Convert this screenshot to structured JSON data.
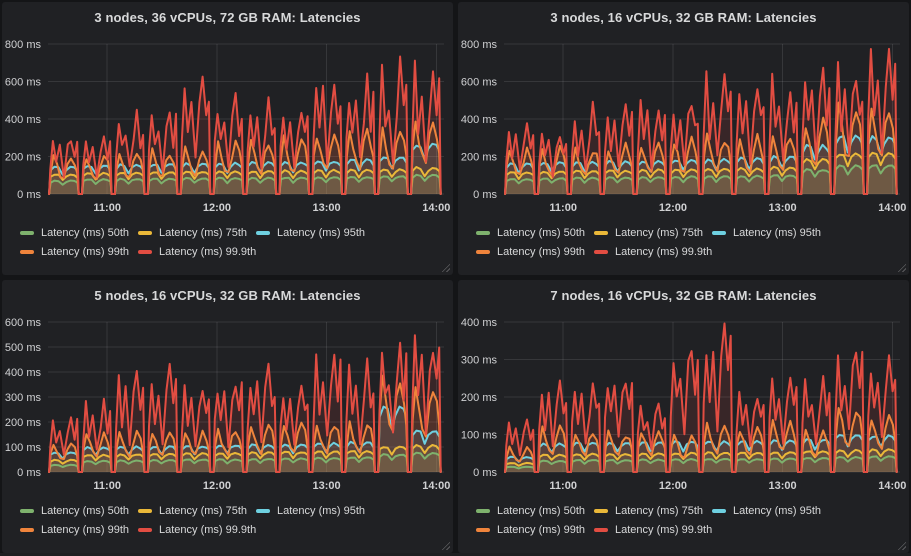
{
  "app": {
    "kind": "metrics-dashboard",
    "theme": "dark"
  },
  "colors": {
    "page_background": "#141517",
    "panel_background": "#202124",
    "grid_line": "rgba(255,255,255,0.10)",
    "title_text": "#d8d9da",
    "tick_text": "#d0d1d3",
    "legend_text": "#d8d9da",
    "series_p50_green": "#7eb26d",
    "series_p75_yellow": "#eab839",
    "series_p95_cyan": "#6ed0e0",
    "series_p99_orange": "#ef843c",
    "series_p999_red": "#e24d42"
  },
  "icons": {
    "panel_resize": "diagonal-grip"
  },
  "panels": [
    {
      "title": "3 nodes, 36 vCPUs, 72 GB RAM: Latencies"
    },
    {
      "title": "3 nodes, 16 vCPUs, 32 GB RAM: Latencies"
    },
    {
      "title": "5 nodes, 16 vCPUs, 32 GB RAM: Latencies"
    },
    {
      "title": "7 nodes, 16 vCPUs, 32 GB RAM: Latencies"
    }
  ],
  "chart_data": [
    {
      "type": "area",
      "title": "3 nodes, 36 vCPUs, 72 GB RAM: Latencies",
      "y_unit": "ms",
      "ylim": [
        0,
        800
      ],
      "grid": true,
      "legend_position": "bottom",
      "x_range_hours": [
        10.46,
        14.07
      ],
      "x_ticks": [
        {
          "hour": 11,
          "label": "11:00"
        },
        {
          "hour": 12,
          "label": "12:00"
        },
        {
          "hour": 13,
          "label": "13:00"
        },
        {
          "hour": 14,
          "label": "14:00"
        }
      ],
      "y_ticks": [
        {
          "value": 0,
          "label": "0 ms"
        },
        {
          "value": 200,
          "label": "200 ms"
        },
        {
          "value": 400,
          "label": "400 ms"
        },
        {
          "value": 600,
          "label": "600 ms"
        },
        {
          "value": 800,
          "label": "800 ms"
        }
      ],
      "bursts": {
        "count": 12,
        "first_start_hour": 10.47,
        "period_hours": 0.3,
        "duration_hours": 0.27
      },
      "series": [
        {
          "key": "p50",
          "name": "Latency (ms) 50th",
          "color": "#7eb26d",
          "profile": "smooth",
          "per_burst_level_ms": [
            70,
            78,
            80,
            82,
            84,
            85,
            86,
            88,
            90,
            92,
            95,
            100
          ]
        },
        {
          "key": "p75",
          "name": "Latency (ms) 75th",
          "color": "#eab839",
          "profile": "smooth",
          "per_burst_level_ms": [
            105,
            112,
            114,
            116,
            118,
            120,
            122,
            124,
            126,
            128,
            132,
            140
          ]
        },
        {
          "key": "p95",
          "name": "Latency (ms) 95th",
          "color": "#6ed0e0",
          "profile": "smooth",
          "per_burst_level_ms": [
            145,
            152,
            155,
            158,
            160,
            163,
            166,
            170,
            175,
            182,
            195,
            265
          ]
        },
        {
          "key": "p99",
          "name": "Latency (ms) 99th",
          "color": "#ef843c",
          "profile": "spiky",
          "per_burst_level_ms": [
            195,
            200,
            215,
            225,
            240,
            265,
            270,
            285,
            315,
            330,
            345,
            390
          ]
        },
        {
          "key": "p999",
          "name": "Latency (ms) 99.9th",
          "color": "#e24d42",
          "profile": "very-spiky",
          "per_burst_level_ms": [
            310,
            300,
            430,
            440,
            680,
            520,
            480,
            450,
            630,
            590,
            640,
            670
          ]
        }
      ]
    },
    {
      "type": "area",
      "title": "3 nodes, 16 vCPUs, 32 GB RAM: Latencies",
      "y_unit": "ms",
      "ylim": [
        0,
        800
      ],
      "grid": true,
      "legend_position": "bottom",
      "x_range_hours": [
        10.46,
        14.07
      ],
      "x_ticks": [
        {
          "hour": 11,
          "label": "11:00"
        },
        {
          "hour": 12,
          "label": "12:00"
        },
        {
          "hour": 13,
          "label": "13:00"
        },
        {
          "hour": 14,
          "label": "14:00"
        }
      ],
      "y_ticks": [
        {
          "value": 0,
          "label": "0 ms"
        },
        {
          "value": 200,
          "label": "200 ms"
        },
        {
          "value": 400,
          "label": "400 ms"
        },
        {
          "value": 600,
          "label": "600 ms"
        },
        {
          "value": 800,
          "label": "800 ms"
        }
      ],
      "bursts": {
        "count": 12,
        "first_start_hour": 10.47,
        "period_hours": 0.3,
        "duration_hours": 0.27
      },
      "series": [
        {
          "key": "p50",
          "name": "Latency (ms) 50th",
          "color": "#7eb26d",
          "profile": "smooth",
          "per_burst_level_ms": [
            80,
            84,
            86,
            88,
            90,
            92,
            94,
            96,
            100,
            130,
            150,
            155
          ]
        },
        {
          "key": "p75",
          "name": "Latency (ms) 75th",
          "color": "#eab839",
          "profile": "smooth",
          "per_burst_level_ms": [
            115,
            120,
            122,
            125,
            128,
            130,
            133,
            136,
            142,
            185,
            215,
            220
          ]
        },
        {
          "key": "p95",
          "name": "Latency (ms) 95th",
          "color": "#6ed0e0",
          "profile": "smooth",
          "per_burst_level_ms": [
            160,
            168,
            170,
            172,
            176,
            180,
            185,
            190,
            198,
            255,
            310,
            300
          ]
        },
        {
          "key": "p99",
          "name": "Latency (ms) 99th",
          "color": "#ef843c",
          "profile": "spiky",
          "per_burst_level_ms": [
            230,
            235,
            240,
            250,
            268,
            280,
            300,
            295,
            315,
            385,
            445,
            450
          ]
        },
        {
          "key": "p999",
          "name": "Latency (ms) 99.9th",
          "color": "#e24d42",
          "profile": "very-spiky",
          "per_burst_level_ms": [
            390,
            350,
            430,
            470,
            490,
            505,
            600,
            580,
            590,
            660,
            655,
            745
          ]
        }
      ]
    },
    {
      "type": "area",
      "title": "5 nodes, 16 vCPUs, 32 GB RAM: Latencies",
      "y_unit": "ms",
      "ylim": [
        0,
        600
      ],
      "grid": true,
      "legend_position": "bottom",
      "x_range_hours": [
        10.46,
        14.07
      ],
      "x_ticks": [
        {
          "hour": 11,
          "label": "11:00"
        },
        {
          "hour": 12,
          "label": "12:00"
        },
        {
          "hour": 13,
          "label": "13:00"
        },
        {
          "hour": 14,
          "label": "14:00"
        }
      ],
      "y_ticks": [
        {
          "value": 0,
          "label": "0 ms"
        },
        {
          "value": 100,
          "label": "100 ms"
        },
        {
          "value": 200,
          "label": "200 ms"
        },
        {
          "value": 300,
          "label": "300 ms"
        },
        {
          "value": 400,
          "label": "400 ms"
        },
        {
          "value": 500,
          "label": "500 ms"
        },
        {
          "value": 600,
          "label": "600 ms"
        }
      ],
      "bursts": {
        "count": 12,
        "first_start_hour": 10.47,
        "period_hours": 0.3,
        "duration_hours": 0.27
      },
      "series": [
        {
          "key": "p50",
          "name": "Latency (ms) 50th",
          "color": "#7eb26d",
          "profile": "smooth",
          "per_burst_level_ms": [
            28,
            44,
            46,
            48,
            50,
            50,
            52,
            54,
            56,
            58,
            70,
            76
          ]
        },
        {
          "key": "p75",
          "name": "Latency (ms) 75th",
          "color": "#eab839",
          "profile": "smooth",
          "per_burst_level_ms": [
            48,
            68,
            70,
            72,
            74,
            76,
            78,
            80,
            82,
            84,
            102,
            106
          ]
        },
        {
          "key": "p95",
          "name": "Latency (ms) 95th",
          "color": "#6ed0e0",
          "profile": "smooth",
          "per_burst_level_ms": [
            78,
            98,
            100,
            102,
            104,
            106,
            108,
            110,
            114,
            118,
            255,
            165
          ]
        },
        {
          "key": "p99",
          "name": "Latency (ms) 99th",
          "color": "#ef843c",
          "profile": "spiky",
          "per_burst_level_ms": [
            115,
            148,
            152,
            156,
            162,
            168,
            185,
            188,
            186,
            192,
            370,
            325
          ]
        },
        {
          "key": "p999",
          "name": "Latency (ms) 99.9th",
          "color": "#e24d42",
          "profile": "very-spiky",
          "per_burst_level_ms": [
            220,
            270,
            380,
            405,
            350,
            385,
            395,
            340,
            465,
            415,
            505,
            520
          ]
        }
      ]
    },
    {
      "type": "area",
      "title": "7 nodes, 16 vCPUs, 32 GB RAM: Latencies",
      "y_unit": "ms",
      "ylim": [
        0,
        400
      ],
      "grid": true,
      "legend_position": "bottom",
      "x_range_hours": [
        10.46,
        14.07
      ],
      "x_ticks": [
        {
          "hour": 11,
          "label": "11:00"
        },
        {
          "hour": 12,
          "label": "12:00"
        },
        {
          "hour": 13,
          "label": "13:00"
        },
        {
          "hour": 14,
          "label": "14:00"
        }
      ],
      "y_ticks": [
        {
          "value": 0,
          "label": "0 ms"
        },
        {
          "value": 100,
          "label": "100 ms"
        },
        {
          "value": 200,
          "label": "200 ms"
        },
        {
          "value": 300,
          "label": "300 ms"
        },
        {
          "value": 400,
          "label": "400 ms"
        }
      ],
      "bursts": {
        "count": 12,
        "first_start_hour": 10.47,
        "period_hours": 0.3,
        "duration_hours": 0.27
      },
      "series": [
        {
          "key": "p50",
          "name": "Latency (ms) 50th",
          "color": "#7eb26d",
          "profile": "smooth",
          "per_burst_level_ms": [
            14,
            30,
            32,
            32,
            33,
            34,
            35,
            35,
            36,
            38,
            40,
            42
          ]
        },
        {
          "key": "p75",
          "name": "Latency (ms) 75th",
          "color": "#eab839",
          "profile": "smooth",
          "per_burst_level_ms": [
            24,
            46,
            48,
            48,
            49,
            50,
            52,
            52,
            53,
            55,
            58,
            60
          ]
        },
        {
          "key": "p95",
          "name": "Latency (ms) 95th",
          "color": "#6ed0e0",
          "profile": "smooth",
          "per_burst_level_ms": [
            40,
            74,
            78,
            78,
            79,
            80,
            81,
            82,
            83,
            86,
            100,
            96
          ]
        },
        {
          "key": "p99",
          "name": "Latency (ms) 99th",
          "color": "#ef843c",
          "profile": "spiky",
          "per_burst_level_ms": [
            62,
            118,
            106,
            102,
            112,
            95,
            122,
            116,
            132,
            108,
            170,
            152
          ]
        },
        {
          "key": "p999",
          "name": "Latency (ms) 99.9th",
          "color": "#e24d42",
          "profile": "very-spiky",
          "per_burst_level_ms": [
            130,
            230,
            235,
            275,
            195,
            345,
            380,
            225,
            255,
            260,
            335,
            310
          ]
        }
      ]
    }
  ]
}
